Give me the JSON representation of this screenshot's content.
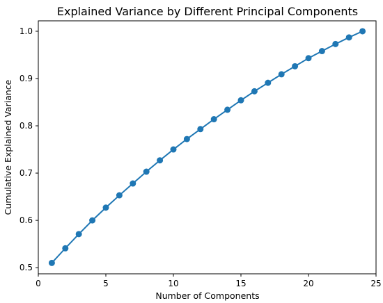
{
  "chart_data": {
    "type": "line",
    "title": "Explained Variance by Different Principal Components",
    "xlabel": "Number of Components",
    "ylabel": "Cumulative Explained Variance",
    "xlim": [
      0,
      25
    ],
    "ylim": [
      0.487,
      1.022
    ],
    "xticks": [
      0,
      5,
      10,
      15,
      20,
      25
    ],
    "yticks": [
      0.5,
      0.6,
      0.7,
      0.8,
      0.9,
      1.0
    ],
    "xtick_labels": [
      "0",
      "5",
      "10",
      "15",
      "20",
      "25"
    ],
    "ytick_labels": [
      "0.5",
      "0.6",
      "0.7",
      "0.8",
      "0.9",
      "1.0"
    ],
    "grid": false,
    "marker": "circle",
    "color": "#1f77b4",
    "series": [
      {
        "x": [
          1,
          2,
          3,
          4,
          5,
          6,
          7,
          8,
          9,
          10,
          11,
          12,
          13,
          14,
          15,
          16,
          17,
          18,
          19,
          20,
          21,
          22,
          23,
          24
        ],
        "values": [
          0.51,
          0.541,
          0.571,
          0.6,
          0.627,
          0.653,
          0.678,
          0.703,
          0.727,
          0.75,
          0.772,
          0.793,
          0.814,
          0.834,
          0.854,
          0.873,
          0.891,
          0.909,
          0.926,
          0.943,
          0.958,
          0.973,
          0.987,
          1.0
        ]
      }
    ]
  }
}
